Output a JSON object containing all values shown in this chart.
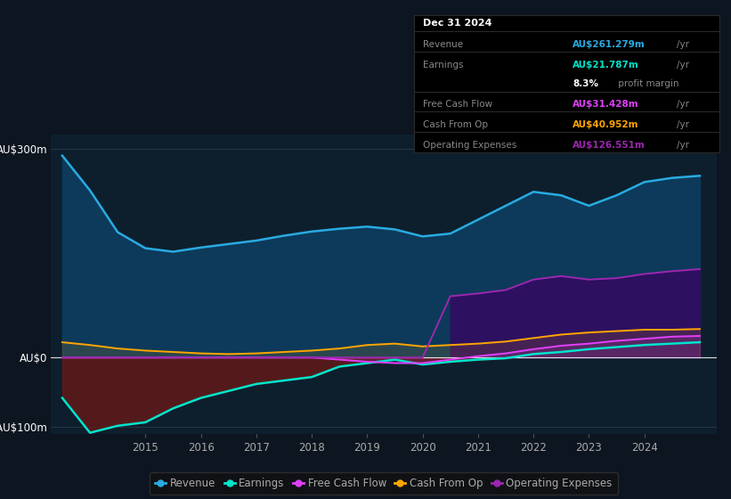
{
  "bg_color": "#0d1520",
  "plot_bg_color": "#0d1f2d",
  "text_color": "#aaaaaa",
  "years": [
    2013.5,
    2014,
    2014.5,
    2015,
    2015.5,
    2016,
    2016.5,
    2017,
    2017.5,
    2018,
    2018.5,
    2019,
    2019.5,
    2020,
    2020.5,
    2021,
    2021.5,
    2022,
    2022.5,
    2023,
    2023.5,
    2024,
    2024.5,
    2025.0
  ],
  "revenue": [
    290,
    240,
    180,
    157,
    152,
    158,
    163,
    168,
    175,
    181,
    185,
    188,
    184,
    174,
    178,
    198,
    218,
    238,
    233,
    218,
    233,
    252,
    258,
    261
  ],
  "earnings": [
    -58,
    -108,
    -98,
    -93,
    -73,
    -58,
    -48,
    -38,
    -33,
    -28,
    -13,
    -8,
    -3,
    -10,
    -6,
    -3,
    -1,
    5,
    8,
    12,
    15,
    18,
    20,
    22
  ],
  "free_cash_flow": [
    0,
    0,
    0,
    0,
    0,
    0,
    0,
    0,
    0,
    0,
    -3,
    -6,
    -8,
    -8,
    -3,
    2,
    6,
    12,
    17,
    20,
    24,
    27,
    30,
    31
  ],
  "cash_from_op": [
    22,
    18,
    13,
    10,
    8,
    6,
    5,
    6,
    8,
    10,
    13,
    18,
    20,
    16,
    18,
    20,
    23,
    28,
    33,
    36,
    38,
    40,
    40,
    41
  ],
  "op_expenses": [
    0,
    0,
    0,
    0,
    0,
    0,
    0,
    0,
    0,
    0,
    0,
    0,
    0,
    0,
    88,
    92,
    97,
    112,
    117,
    112,
    114,
    120,
    124,
    127
  ],
  "revenue_color": "#29abe2",
  "earnings_color": "#00e5cc",
  "fcf_color": "#e040fb",
  "cashop_color": "#ffa500",
  "opex_color": "#9c27b0",
  "revenue_fill": "#0d3a5a",
  "earnings_fill_neg": "#5c1a1a",
  "opex_fill": "#2d1060",
  "legend_items": [
    "Revenue",
    "Earnings",
    "Free Cash Flow",
    "Cash From Op",
    "Operating Expenses"
  ],
  "info_box": {
    "date": "Dec 31 2024",
    "revenue_val": "AU$261.279m",
    "earnings_val": "AU$21.787m",
    "profit_margin": "8.3%",
    "fcf_val": "AU$31.428m",
    "cashop_val": "AU$40.952m",
    "opex_val": "AU$126.551m"
  },
  "ylim": [
    -110,
    320
  ],
  "xlim": [
    2013.3,
    2025.3
  ],
  "xtick_years": [
    2015,
    2016,
    2017,
    2018,
    2019,
    2020,
    2021,
    2022,
    2023,
    2024
  ],
  "yticks": [
    -100,
    0,
    300
  ],
  "ytick_labels": [
    "-AU$100m",
    "AU$0",
    "AU$300m"
  ]
}
